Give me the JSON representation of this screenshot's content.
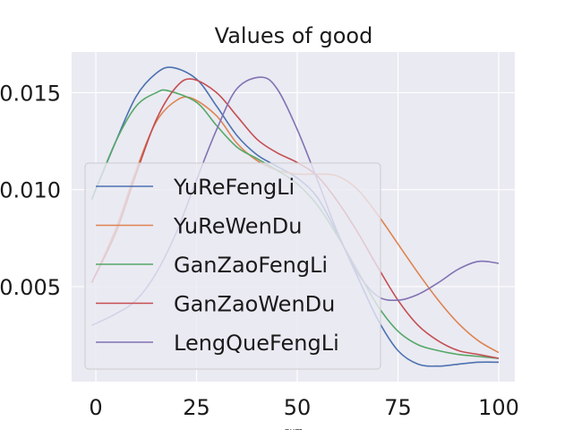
{
  "chart_data": {
    "type": "line",
    "title": "Values of good",
    "xlabel": "num",
    "ylabel": "",
    "xlim": [
      -6,
      104
    ],
    "ylim": [
      0.0001,
      0.0171
    ],
    "xticks": [
      0,
      25,
      50,
      75,
      100
    ],
    "xtick_labels": [
      "0",
      "25",
      "50",
      "75",
      "100"
    ],
    "yticks": [
      0.005,
      0.01,
      0.015
    ],
    "ytick_labels": [
      "0.005",
      "0.010",
      "0.015"
    ],
    "grid": true,
    "legend_position": "center-left",
    "series": [
      {
        "name": "YuReFengLi",
        "color": "#4c72b0",
        "x": [
          -1,
          5,
          10,
          15,
          19,
          25,
          30,
          35,
          40,
          45,
          50,
          55,
          60,
          65,
          70,
          75,
          80,
          85,
          90,
          95,
          100
        ],
        "y": [
          0.0095,
          0.0125,
          0.0148,
          0.016,
          0.0163,
          0.0157,
          0.0143,
          0.0128,
          0.0118,
          0.0112,
          0.0106,
          0.0096,
          0.0077,
          0.0055,
          0.0033,
          0.0017,
          0.001,
          0.0009,
          0.001,
          0.0011,
          0.0011
        ]
      },
      {
        "name": "YuReWenDu",
        "color": "#dd8452",
        "x": [
          -1,
          5,
          10,
          15,
          20,
          24,
          30,
          35,
          40,
          45,
          50,
          55,
          60,
          65,
          70,
          75,
          80,
          85,
          90,
          95,
          100
        ],
        "y": [
          0.0052,
          0.008,
          0.011,
          0.0135,
          0.0146,
          0.0147,
          0.0138,
          0.0124,
          0.0115,
          0.011,
          0.0108,
          0.0108,
          0.0107,
          0.01,
          0.0087,
          0.0072,
          0.0057,
          0.0043,
          0.0031,
          0.0022,
          0.0016
        ]
      },
      {
        "name": "GanZaoFengLi",
        "color": "#55a868",
        "x": [
          -1,
          5,
          10,
          15,
          18,
          25,
          30,
          35,
          40,
          45,
          50,
          55,
          60,
          65,
          70,
          75,
          80,
          85,
          90,
          95,
          100
        ],
        "y": [
          0.0095,
          0.0125,
          0.0143,
          0.015,
          0.0151,
          0.0145,
          0.0133,
          0.0122,
          0.0116,
          0.011,
          0.0103,
          0.0092,
          0.0076,
          0.0058,
          0.004,
          0.0027,
          0.002,
          0.0017,
          0.0015,
          0.0014,
          0.0013
        ]
      },
      {
        "name": "GanZaoWenDu",
        "color": "#c44e52",
        "x": [
          -1,
          5,
          10,
          15,
          20,
          24,
          30,
          35,
          40,
          45,
          50,
          55,
          60,
          65,
          70,
          75,
          80,
          85,
          90,
          95,
          100
        ],
        "y": [
          0.0052,
          0.0078,
          0.0108,
          0.0136,
          0.0153,
          0.0157,
          0.015,
          0.0138,
          0.0126,
          0.0119,
          0.0114,
          0.0107,
          0.0094,
          0.0078,
          0.006,
          0.0043,
          0.003,
          0.0022,
          0.0017,
          0.0015,
          0.0013
        ]
      },
      {
        "name": "LengQueFengLi",
        "color": "#8172b3",
        "x": [
          -1,
          5,
          10,
          15,
          20,
          25,
          30,
          35,
          41,
          45,
          50,
          55,
          60,
          65,
          70,
          75,
          80,
          85,
          90,
          95,
          100
        ],
        "y": [
          0.003,
          0.0036,
          0.0043,
          0.0057,
          0.0078,
          0.0105,
          0.0131,
          0.0152,
          0.0158,
          0.0152,
          0.0131,
          0.0105,
          0.0078,
          0.0057,
          0.0045,
          0.0043,
          0.0046,
          0.0052,
          0.0059,
          0.0063,
          0.0062
        ]
      }
    ]
  }
}
